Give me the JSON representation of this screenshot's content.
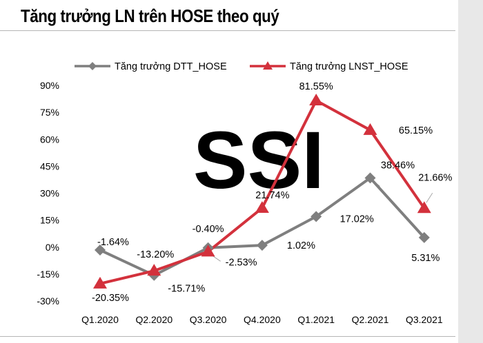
{
  "header": {
    "title": "Tăng trưởng LN trên HOSE theo quý"
  },
  "watermark": {
    "text": "SSI"
  },
  "colors": {
    "series_1": "#7f7f7f",
    "series_2": "#d3313c",
    "watermark": "#ececec",
    "rule": "#b5b5b5",
    "leader": "#a6a6a6"
  },
  "chart_data": {
    "type": "line",
    "title": "Tăng trưởng LN trên HOSE theo quý",
    "xlabel": "",
    "ylabel": "",
    "categories": [
      "Q1.2020",
      "Q2.2020",
      "Q3.2020",
      "Q4.2020",
      "Q1.2021",
      "Q2.2021",
      "Q3.2021"
    ],
    "ylim": [
      -30,
      90
    ],
    "yticks": [
      90,
      75,
      60,
      45,
      30,
      15,
      0,
      -15,
      -30
    ],
    "ytick_labels": [
      "90%",
      "75%",
      "60%",
      "45%",
      "30%",
      "15%",
      "0%",
      "-15%",
      "-30%"
    ],
    "legend_position": "top",
    "grid": false,
    "series": [
      {
        "name": "Tăng trưởng DTT_HOSE",
        "marker": "diamond",
        "values": [
          -1.64,
          -15.71,
          -0.4,
          1.02,
          17.02,
          38.46,
          5.31
        ],
        "labels": [
          "-1.64%",
          "-15.71%",
          "-0.40%",
          "1.02%",
          "17.02%",
          "38.46%",
          "5.31%"
        ]
      },
      {
        "name": "Tăng trưởng LNST_HOSE",
        "marker": "triangle",
        "values": [
          -20.35,
          -13.2,
          -2.53,
          21.74,
          81.55,
          65.15,
          21.66
        ],
        "labels": [
          "-20.35%",
          "-13.20%",
          "-2.53%",
          "21.74%",
          "81.55%",
          "65.15%",
          "21.66%"
        ]
      }
    ]
  }
}
